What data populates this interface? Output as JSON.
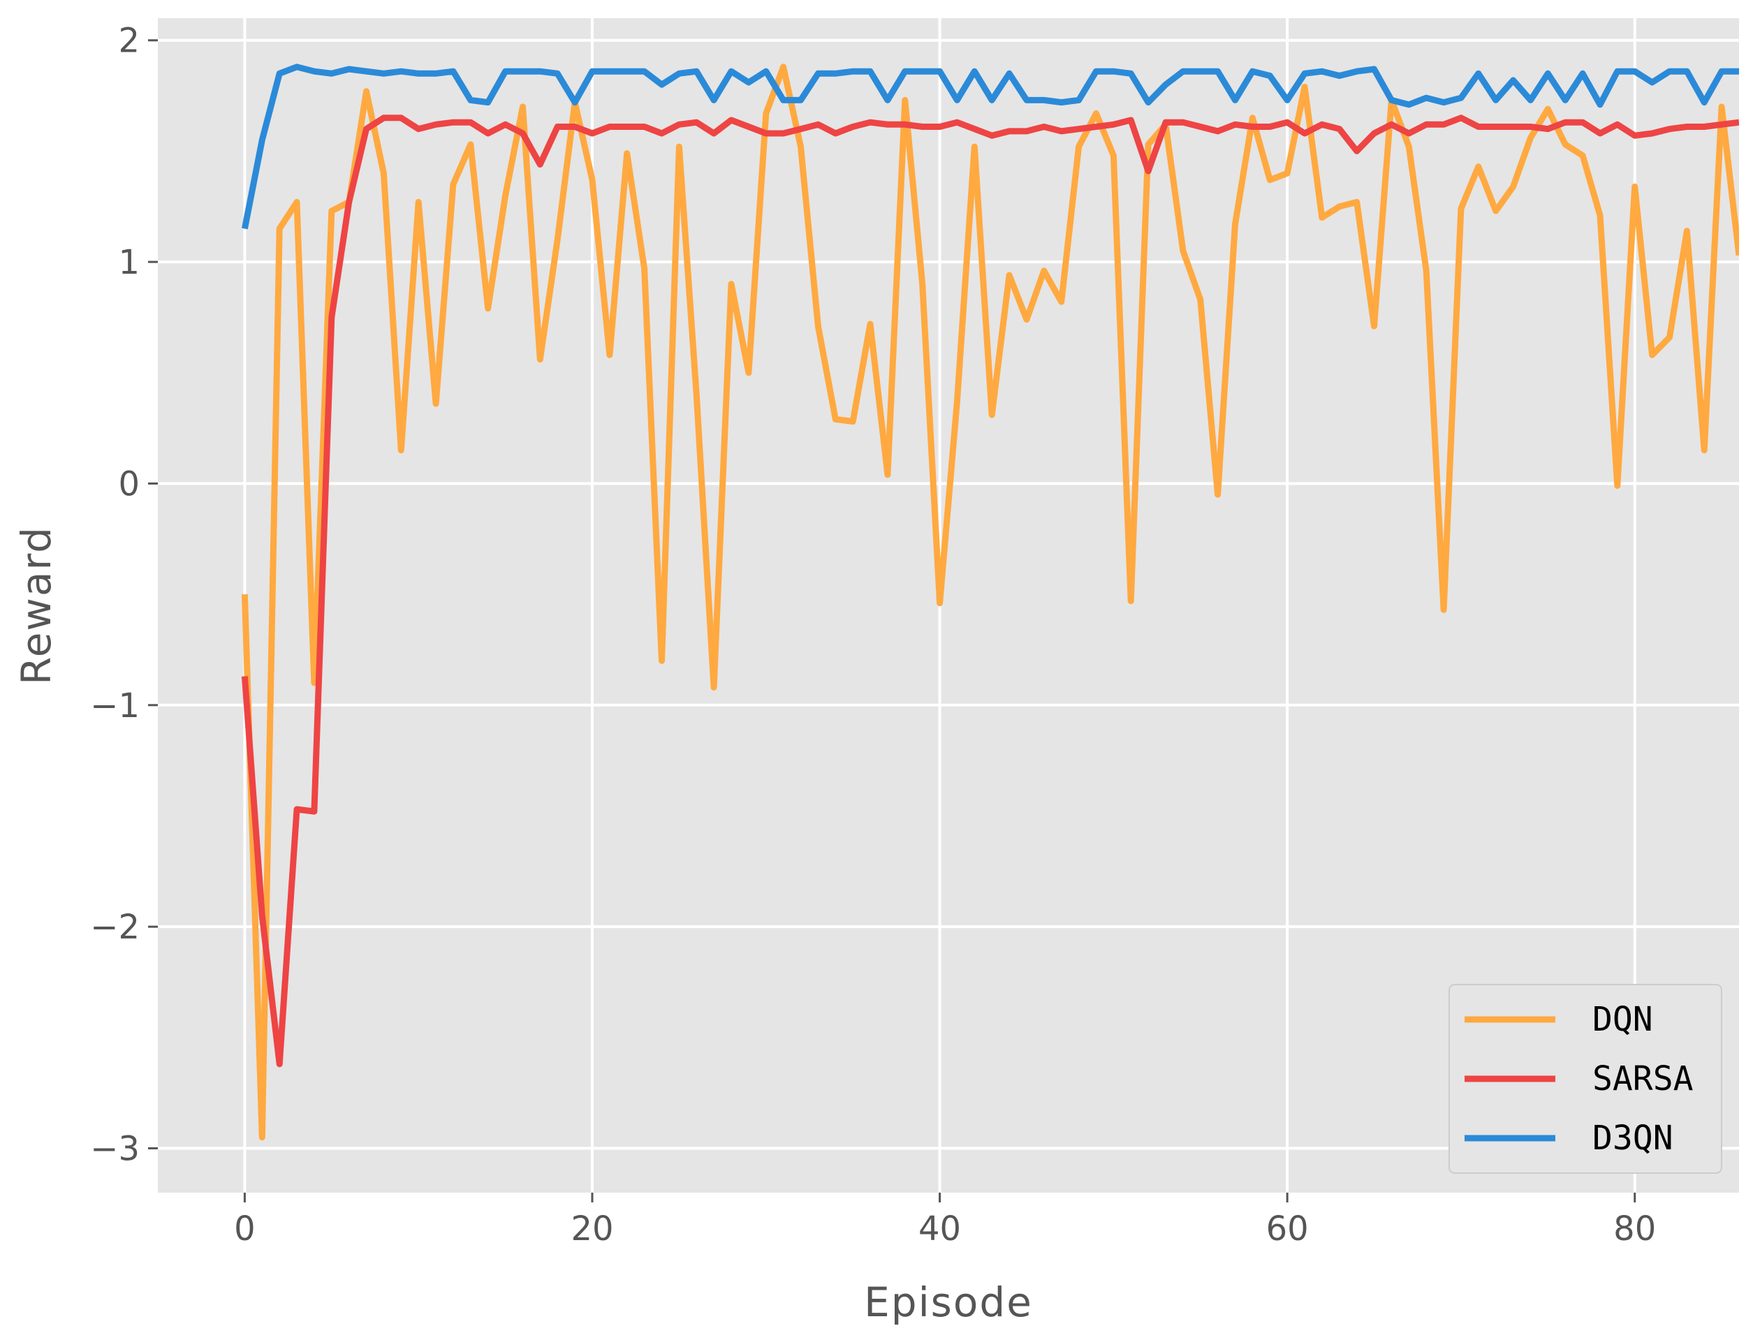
{
  "chart_data": {
    "type": "line",
    "xlabel": "Episode",
    "ylabel": "Reward",
    "xlim": [
      -5,
      86
    ],
    "ylim": [
      -3.2,
      2.1
    ],
    "xticks": [
      0,
      20,
      40,
      60,
      80
    ],
    "yticks": [
      -3,
      -2,
      -1,
      0,
      1,
      2
    ],
    "xtick_labels": [
      "0",
      "20",
      "40",
      "60",
      "80"
    ],
    "ytick_labels": [
      "−3",
      "−2",
      "−1",
      "0",
      "1",
      "2"
    ],
    "grid": true,
    "legend_position": "lower-right",
    "background": "#e5e5e5",
    "grid_color": "#ffffff",
    "series": [
      {
        "name": "DQN",
        "color": "#ffa940",
        "values": [
          -0.5,
          -2.95,
          1.15,
          1.27,
          -0.9,
          1.23,
          1.27,
          1.77,
          1.4,
          0.15,
          1.27,
          0.36,
          1.35,
          1.53,
          0.79,
          1.3,
          1.7,
          0.56,
          1.1,
          1.72,
          1.37,
          0.58,
          1.49,
          0.97,
          -0.8,
          1.52,
          0.4,
          -0.92,
          0.9,
          0.5,
          1.67,
          1.88,
          1.52,
          0.71,
          0.29,
          0.28,
          0.72,
          0.04,
          1.73,
          0.9,
          -0.54,
          0.37,
          1.52,
          0.31,
          0.94,
          0.74,
          0.96,
          0.82,
          1.52,
          1.67,
          1.48,
          -0.53,
          1.53,
          1.62,
          1.05,
          0.83,
          -0.05,
          1.17,
          1.65,
          1.37,
          1.4,
          1.79,
          1.2,
          1.25,
          1.27,
          0.71,
          1.73,
          1.52,
          0.96,
          -0.57,
          1.24,
          1.43,
          1.23,
          1.34,
          1.56,
          1.69,
          1.53,
          1.48,
          1.21,
          -0.01,
          1.34,
          0.58,
          0.66,
          1.14,
          0.15,
          1.7,
          1.03
        ]
      },
      {
        "name": "SARSA",
        "color": "#ee4444",
        "values": [
          -0.87,
          -1.95,
          -2.62,
          -1.47,
          -1.48,
          0.75,
          1.27,
          1.6,
          1.65,
          1.65,
          1.6,
          1.62,
          1.63,
          1.63,
          1.58,
          1.62,
          1.58,
          1.44,
          1.61,
          1.61,
          1.58,
          1.61,
          1.61,
          1.61,
          1.58,
          1.62,
          1.63,
          1.58,
          1.64,
          1.61,
          1.58,
          1.58,
          1.6,
          1.62,
          1.58,
          1.61,
          1.63,
          1.62,
          1.62,
          1.61,
          1.61,
          1.63,
          1.6,
          1.57,
          1.59,
          1.59,
          1.61,
          1.59,
          1.6,
          1.61,
          1.62,
          1.64,
          1.41,
          1.63,
          1.63,
          1.61,
          1.59,
          1.62,
          1.61,
          1.61,
          1.63,
          1.58,
          1.62,
          1.6,
          1.5,
          1.58,
          1.62,
          1.58,
          1.62,
          1.62,
          1.65,
          1.61,
          1.61,
          1.61,
          1.61,
          1.6,
          1.63,
          1.63,
          1.58,
          1.62,
          1.57,
          1.58,
          1.6,
          1.61,
          1.61,
          1.62,
          1.63
        ]
      },
      {
        "name": "D3QN",
        "color": "#2b8ad8",
        "values": [
          1.15,
          1.55,
          1.85,
          1.88,
          1.86,
          1.85,
          1.87,
          1.86,
          1.85,
          1.86,
          1.85,
          1.85,
          1.86,
          1.73,
          1.72,
          1.86,
          1.86,
          1.86,
          1.85,
          1.72,
          1.86,
          1.86,
          1.86,
          1.86,
          1.8,
          1.85,
          1.86,
          1.73,
          1.86,
          1.81,
          1.86,
          1.73,
          1.73,
          1.85,
          1.85,
          1.86,
          1.86,
          1.73,
          1.86,
          1.86,
          1.86,
          1.73,
          1.86,
          1.73,
          1.85,
          1.73,
          1.73,
          1.72,
          1.73,
          1.86,
          1.86,
          1.85,
          1.72,
          1.8,
          1.86,
          1.86,
          1.86,
          1.73,
          1.86,
          1.84,
          1.73,
          1.85,
          1.86,
          1.84,
          1.86,
          1.87,
          1.73,
          1.71,
          1.74,
          1.72,
          1.74,
          1.85,
          1.73,
          1.82,
          1.73,
          1.85,
          1.73,
          1.85,
          1.71,
          1.86,
          1.86,
          1.81,
          1.86,
          1.86,
          1.72,
          1.86,
          1.86
        ]
      }
    ]
  }
}
